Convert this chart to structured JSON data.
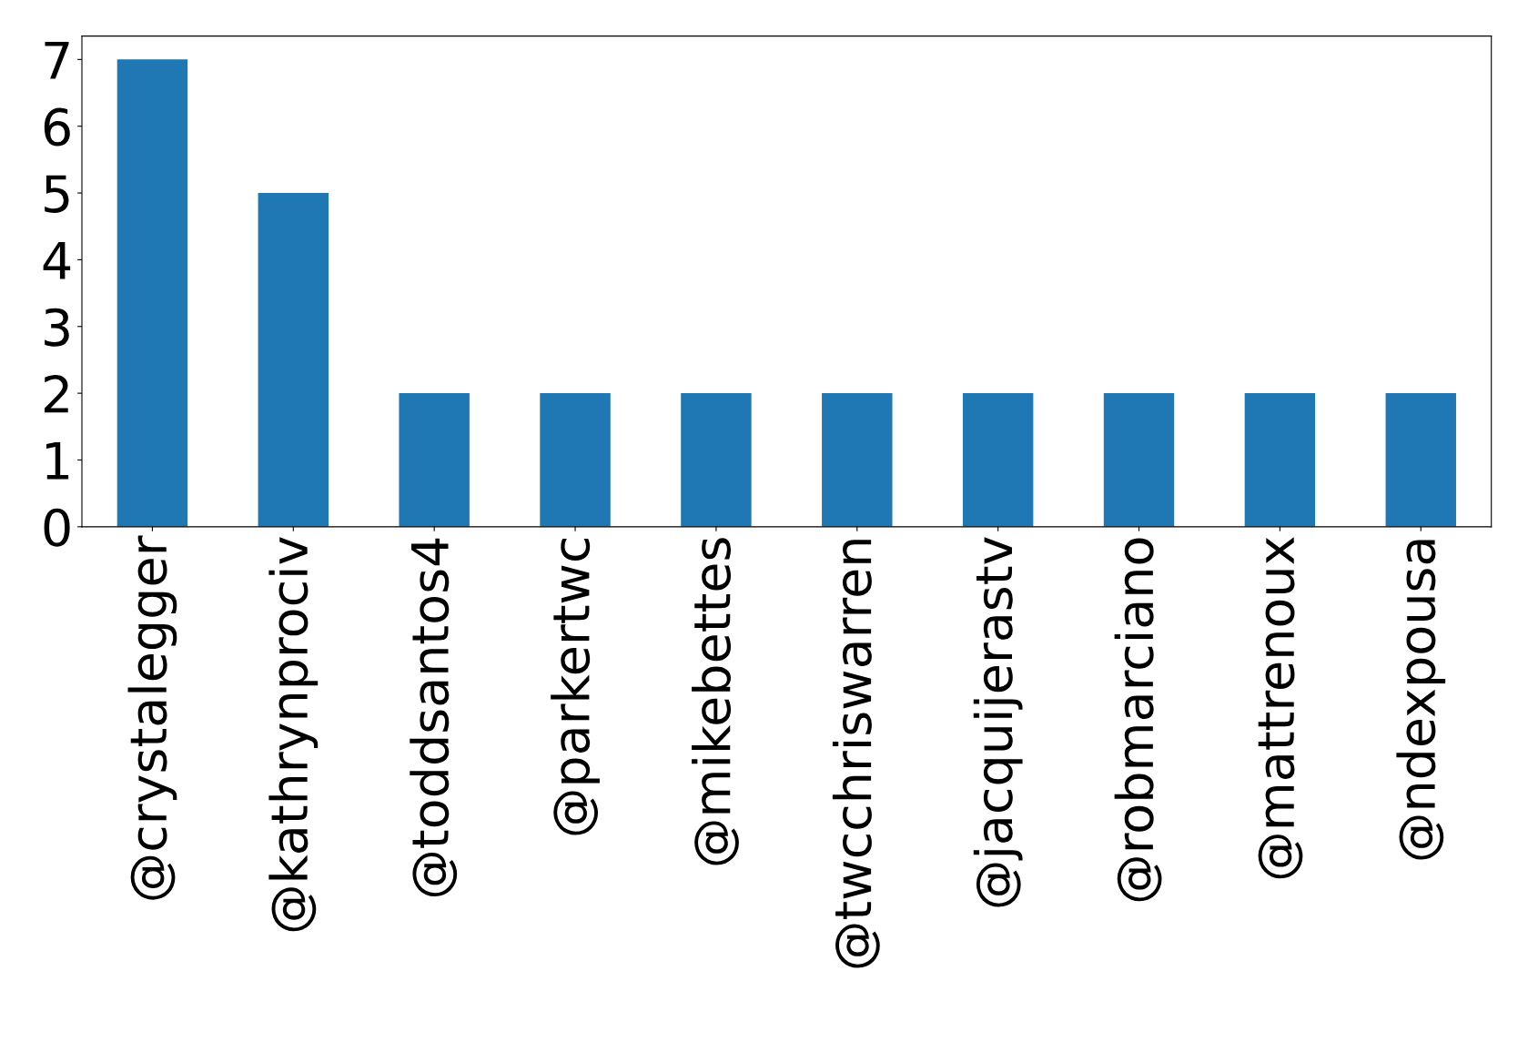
{
  "chart_data": {
    "type": "bar",
    "categories": [
      "@crystalegger",
      "@kathrynprociv",
      "@toddsantos4",
      "@parkertwc",
      "@mikebettes",
      "@twcchriswarren",
      "@jacquijerastv",
      "@robmarciano",
      "@mattrenoux",
      "@ndexpousa"
    ],
    "values": [
      7,
      5,
      2,
      2,
      2,
      2,
      2,
      2,
      2,
      2
    ],
    "color": "#1f77b4",
    "ylim": [
      0,
      7.35
    ],
    "yticks": [
      0,
      1,
      2,
      3,
      4,
      5,
      6,
      7
    ],
    "grid": false,
    "legend": false
  }
}
